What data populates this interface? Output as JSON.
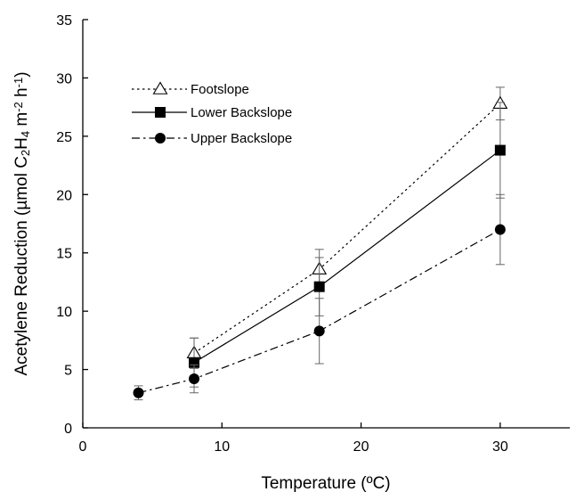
{
  "chart_data": {
    "type": "line",
    "xlabel": "Temperature (ºC)",
    "ylabel": {
      "parts": [
        {
          "t": "Acetylene Reduction (µmol C"
        },
        {
          "t": "2",
          "sub": true
        },
        {
          "t": "H"
        },
        {
          "t": "4",
          "sub": true
        },
        {
          "t": " m"
        },
        {
          "t": "-2",
          "sup": true
        },
        {
          "t": " h"
        },
        {
          "t": "-1",
          "sup": true
        },
        {
          "t": ")"
        }
      ]
    },
    "xlim": [
      0,
      35
    ],
    "ylim": [
      0,
      35
    ],
    "xticks": [
      0,
      10,
      20,
      30
    ],
    "yticks": [
      0,
      5,
      10,
      15,
      20,
      25,
      30,
      35
    ],
    "grid": false,
    "legend_position": "top-left",
    "series": [
      {
        "name": "Footslope",
        "marker": "open-triangle",
        "line": "dotted",
        "x": [
          8,
          17,
          30
        ],
        "y": [
          6.4,
          13.6,
          27.8
        ],
        "err": [
          1.3,
          1.7,
          1.4
        ]
      },
      {
        "name": "Lower Backslope",
        "marker": "filled-square",
        "line": "solid",
        "x": [
          8,
          17,
          30
        ],
        "y": [
          5.6,
          12.1,
          23.8
        ],
        "err": [
          2.1,
          2.5,
          4.1
        ]
      },
      {
        "name": "Upper Backslope",
        "marker": "filled-circle",
        "line": "dash-dot",
        "x": [
          4,
          8,
          17,
          30
        ],
        "y": [
          3.0,
          4.2,
          8.3,
          17.0
        ],
        "err": [
          0.6,
          1.2,
          2.8,
          3.0
        ]
      }
    ]
  }
}
